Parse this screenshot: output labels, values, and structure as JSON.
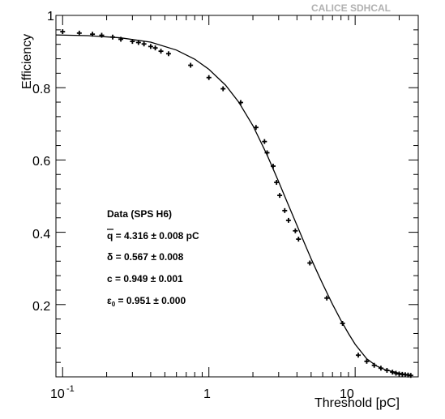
{
  "watermark": "CALICE SDHCAL",
  "chart_data": {
    "type": "scatter",
    "title": "",
    "xlabel": "Threshold [pC]",
    "ylabel": "Efficiency",
    "x_scale": "log",
    "xlim": [
      0.09,
      27
    ],
    "ylim": [
      0,
      1
    ],
    "x_tick_labels": [
      "10",
      "1",
      "10"
    ],
    "x_tick_label_sup": "-1",
    "y_tick_labels": [
      "0.2",
      "0.4",
      "0.6",
      "0.8",
      "1"
    ],
    "grid": false,
    "series": [
      {
        "kind": "points",
        "x": [
          0.1,
          0.13,
          0.16,
          0.185,
          0.22,
          0.25,
          0.3,
          0.33,
          0.36,
          0.4,
          0.43,
          0.47,
          0.53,
          0.75,
          1.0,
          1.25,
          1.65,
          2.1,
          2.4,
          2.5,
          2.75,
          2.9,
          3.05,
          3.3,
          3.5,
          3.9,
          4.1,
          4.9,
          6.4,
          8.2,
          10.5,
          12.0,
          13.5,
          15.0,
          16.5,
          18.0,
          19.0,
          20.0,
          21.0,
          22.0,
          23.0,
          24.0
        ],
        "y": [
          0.955,
          0.951,
          0.948,
          0.945,
          0.94,
          0.934,
          0.928,
          0.925,
          0.921,
          0.914,
          0.91,
          0.901,
          0.894,
          0.862,
          0.828,
          0.797,
          0.759,
          0.69,
          0.651,
          0.62,
          0.583,
          0.538,
          0.502,
          0.46,
          0.433,
          0.404,
          0.381,
          0.315,
          0.218,
          0.148,
          0.06,
          0.043,
          0.032,
          0.024,
          0.018,
          0.013,
          0.01,
          0.008,
          0.007,
          0.006,
          0.005,
          0.004
        ]
      },
      {
        "kind": "fit-line",
        "x": [
          0.09,
          0.15,
          0.25,
          0.4,
          0.6,
          0.8,
          1.0,
          1.3,
          1.6,
          2.0,
          2.5,
          3.0,
          3.5,
          4.0,
          4.5,
          5.0,
          5.5,
          6.0,
          7.0,
          8.0,
          9.0,
          10.0,
          12.0,
          14.0,
          16.0,
          20.0,
          24.0
        ],
        "y": [
          0.946,
          0.944,
          0.938,
          0.926,
          0.904,
          0.879,
          0.851,
          0.807,
          0.76,
          0.695,
          0.614,
          0.54,
          0.475,
          0.419,
          0.37,
          0.327,
          0.29,
          0.257,
          0.201,
          0.156,
          0.12,
          0.09,
          0.05,
          0.03,
          0.02,
          0.01,
          0.005
        ]
      }
    ],
    "annotations": [
      "Data (SPS H6)",
      "q = 4.316 ± 0.008 pC",
      "δ = 0.567 ± 0.008",
      "c = 0.949 ± 0.001",
      "ε",
      "0",
      " = 0.951 ± 0.000"
    ]
  }
}
